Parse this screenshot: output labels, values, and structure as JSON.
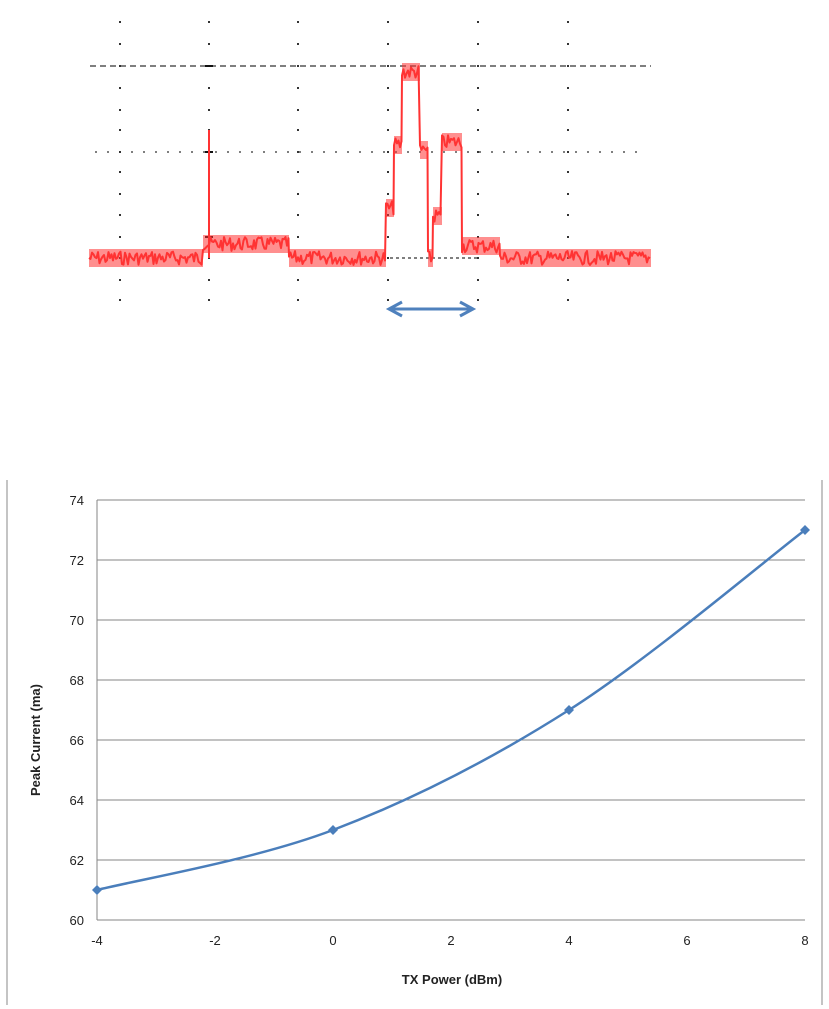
{
  "scope_trace": {
    "trace_color": "#ff3333",
    "grid_color": "#333333",
    "arrow_color": "#4f81bd",
    "description_arrow": "double-headed"
  },
  "chart_data": {
    "type": "line",
    "x": [
      -4,
      0,
      4,
      8
    ],
    "series": [
      {
        "values": [
          61,
          63,
          67,
          73
        ],
        "color": "#4a7ebb",
        "marker": "diamond",
        "smooth": true
      }
    ],
    "xlabel": "TX Power (dBm)",
    "ylabel": "Peak Current (ma)",
    "xlim": [
      -4,
      8
    ],
    "ylim": [
      60,
      74
    ],
    "xticks": [
      -4,
      -2,
      0,
      2,
      4,
      6,
      8
    ],
    "yticks": [
      60,
      62,
      64,
      66,
      68,
      70,
      72,
      74
    ],
    "grid": "horizontal",
    "legend": "none"
  }
}
